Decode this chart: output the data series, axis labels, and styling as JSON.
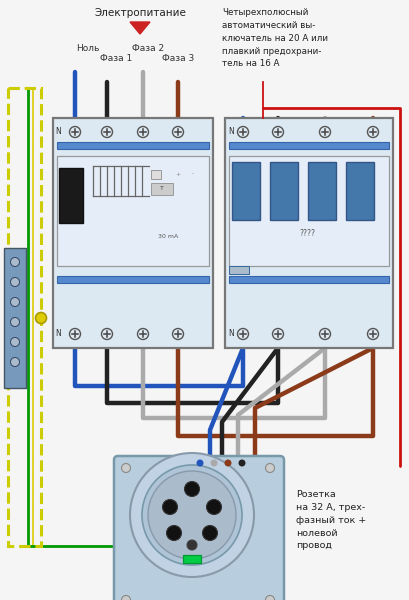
{
  "bg": "#f2f2f2",
  "title": "Электропитание",
  "lbl_nol": "Ноль",
  "lbl_f1": "Фаза 1",
  "lbl_f2": "Фаза 2",
  "lbl_f3": "Фаза 3",
  "lbl_right": "Четырехполюсный\nавтоматический вы-\nключатель на 20 А или\nплавкий предохрани-\nтель на 16 А",
  "lbl_socket": "Розетка\nна 32 А, трех-\nфазный ток +\nнолевой\nпровод",
  "c_blue": "#3366cc",
  "c_black": "#1a1a1a",
  "c_gray": "#999999",
  "c_brown": "#7B3A10",
  "c_red": "#cc1111",
  "c_green": "#009900",
  "c_yellow": "#ddcc00",
  "c_dev": "#dce8f2",
  "c_dev_b": "#6699bb",
  "c_wire_blue": "#2255bb",
  "c_wire_black": "#222222",
  "c_wire_gray": "#aaaaaa",
  "c_wire_brown": "#8B3A1A",
  "c_wire_darkbrown": "#5c2800"
}
